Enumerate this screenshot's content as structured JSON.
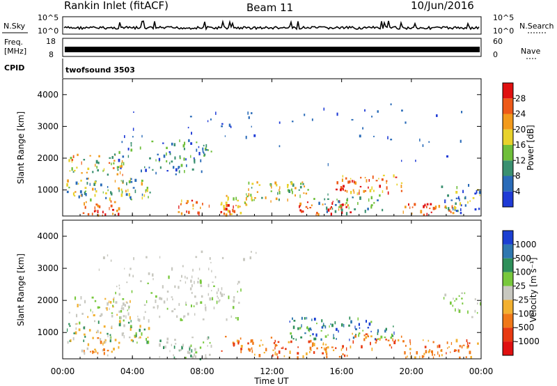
{
  "header": {
    "station": "Rankin Inlet (fitACF)",
    "beam": "Beam 11",
    "date": "10/Jun/2016"
  },
  "noise_panel": {
    "left_label": "N.Sky",
    "right_label": "N.Search",
    "left_ticks": [
      "10^5",
      "10^0"
    ],
    "right_ticks": [
      "10^5",
      "10^0"
    ]
  },
  "freq_panel": {
    "left_label": "Freq.",
    "left_unit": "[MHz]",
    "right_label": "Nave",
    "left_ticks": [
      "18",
      "8"
    ],
    "right_ticks": [
      "60",
      "0"
    ]
  },
  "cpid_panel": {
    "label": "CPID",
    "program": "twofsound 3503"
  },
  "chart_data": [
    {
      "type": "heatmap",
      "name": "Power",
      "ylabel": "Slant Range [km]",
      "ylim": [
        180,
        4500
      ],
      "yticks": [
        "1000",
        "2000",
        "3000",
        "4000"
      ],
      "colorbar_label": "Power [dB]",
      "colorbar_ticks": [
        "4",
        "8",
        "12",
        "16",
        "20",
        "24",
        "28"
      ],
      "colorbar_colors": [
        "#1f3bd6",
        "#2a6bb8",
        "#3a9070",
        "#6fbf3a",
        "#e8d22c",
        "#f29a1c",
        "#ee5a18",
        "#e01010"
      ],
      "xlim": [
        "00:00",
        "24:00"
      ]
    },
    {
      "type": "heatmap",
      "name": "Velocity",
      "ylabel": "Slant Range [km]",
      "ylim": [
        180,
        4500
      ],
      "yticks": [
        "1000",
        "2000",
        "3000",
        "4000"
      ],
      "colorbar_label": "Velocity [m s⁻¹]",
      "colorbar_ticks": [
        "1000",
        "500",
        "100",
        "25",
        "-25",
        "-100",
        "-500",
        "-1000"
      ],
      "colorbar_colors": [
        "#1b3fd2",
        "#2f77b0",
        "#2e8f5a",
        "#78c83c",
        "#c8c8c0",
        "#f2b030",
        "#f07818",
        "#e83a12",
        "#e01010"
      ],
      "xlim": [
        "00:00",
        "24:00"
      ]
    }
  ],
  "time_axis": {
    "ticks": [
      "00:00",
      "04:00",
      "08:00",
      "12:00",
      "16:00",
      "20:00",
      "00:00"
    ],
    "label": "Time UT"
  }
}
